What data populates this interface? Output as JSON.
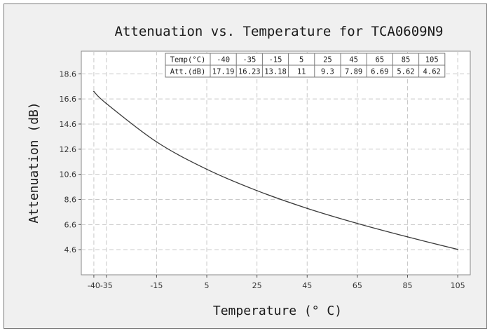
{
  "chart_data": {
    "type": "line",
    "title": "Attenuation vs. Temperature for TCA0609N9",
    "xlabel": "Temperature (° C)",
    "ylabel": "Attenuation (dB)",
    "x_ticks": [
      "-40",
      "-35",
      "-15",
      "5",
      "25",
      "45",
      "65",
      "85",
      "105"
    ],
    "y_ticks": [
      "4.6",
      "6.6",
      "8.6",
      "10.6",
      "12.6",
      "14.6",
      "16.6",
      "18.6"
    ],
    "xlim": [
      -45,
      110
    ],
    "ylim": [
      2.6,
      20.4
    ],
    "grid": true,
    "x": [
      -40,
      -35,
      -15,
      5,
      25,
      45,
      65,
      85,
      105
    ],
    "series": [
      {
        "values": [
          17.19,
          16.23,
          13.18,
          11,
          9.3,
          7.89,
          6.69,
          5.62,
          4.62
        ]
      }
    ],
    "table": {
      "header_label": "Temp(°C)",
      "row_label": "Att.(dB)",
      "temps": [
        "-40",
        "-35",
        "-15",
        "5",
        "25",
        "45",
        "65",
        "85",
        "105"
      ],
      "values": [
        "17.19",
        "16.23",
        "13.18",
        "11",
        "9.3",
        "7.89",
        "6.69",
        "5.62",
        "4.62"
      ]
    },
    "colors": {
      "line": "#3a3a3a",
      "plot_bg": "#ffffff",
      "frame_bg": "#f0f0f0"
    }
  }
}
